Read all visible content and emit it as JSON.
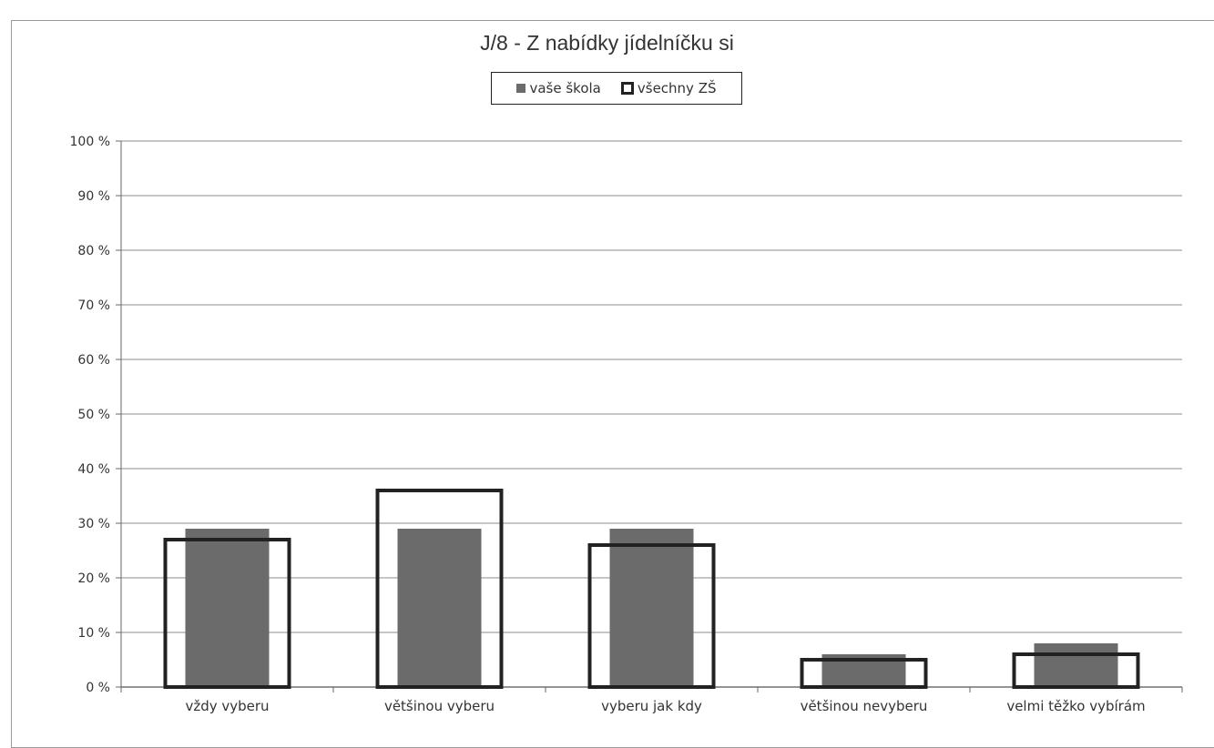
{
  "chart_data": {
    "type": "bar",
    "title": "J/8 - Z nabídky jídelníčku si",
    "categories": [
      "vždy vyberu",
      "většinou vyberu",
      "vyberu jak kdy",
      "většinou nevyberu",
      "velmi těžko vybírám"
    ],
    "series": [
      {
        "name": "vaše škola",
        "values": [
          29,
          29,
          29,
          6,
          8
        ],
        "style": "filled",
        "color": "#6b6b6b"
      },
      {
        "name": "všechny ZŠ",
        "values": [
          27,
          36,
          26,
          5,
          6
        ],
        "style": "outline",
        "color": "#222222"
      }
    ],
    "yticks": [
      "0 %",
      "10 %",
      "20 %",
      "30 %",
      "40 %",
      "50 %",
      "60 %",
      "70 %",
      "80 %",
      "90 %",
      "100 %"
    ],
    "ylim": [
      0,
      100
    ],
    "xlabel": "",
    "ylabel": "",
    "grid": true,
    "legend_position": "top-center"
  }
}
